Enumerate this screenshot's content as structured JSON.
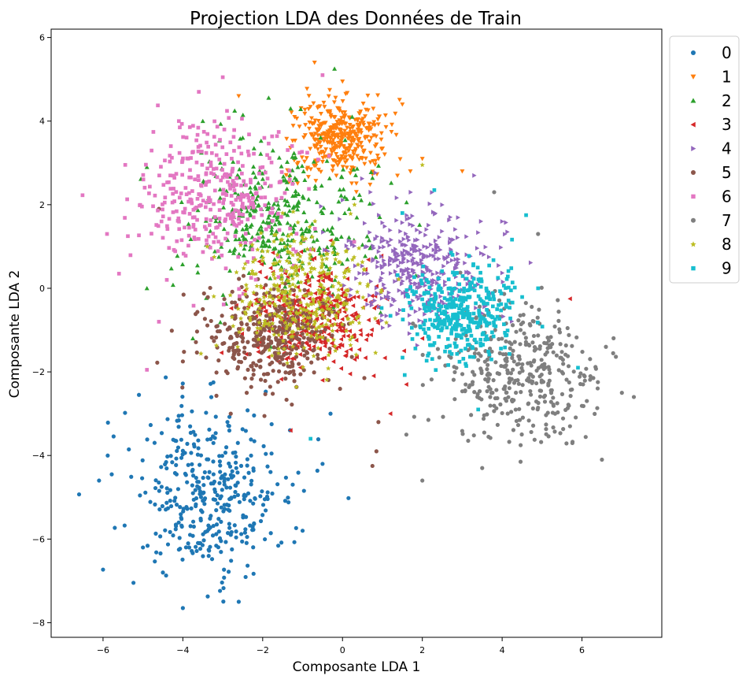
{
  "chart_data": {
    "type": "scatter",
    "title": "Projection LDA des Données de Train",
    "xlabel": "Composante LDA 1",
    "ylabel": "Composante LDA 2",
    "xlim": [
      -7.3,
      8.0
    ],
    "ylim": [
      -8.35,
      6.2
    ],
    "xticks": [
      -6,
      -4,
      -2,
      0,
      2,
      4,
      6
    ],
    "xtick_labels": [
      "−6",
      "−4",
      "−2",
      "0",
      "2",
      "4",
      "6"
    ],
    "yticks": [
      6,
      4,
      2,
      0,
      -2,
      -4,
      -6,
      -8
    ],
    "ytick_labels": [
      "6",
      "4",
      "2",
      "0",
      "−2",
      "−4",
      "−6",
      "−8"
    ],
    "grid": false,
    "legend_position": "outside-top-right",
    "series": [
      {
        "name": "0",
        "color": "#1f77b4",
        "marker": "circle",
        "center": [
          -3.4,
          -4.9
        ],
        "spread": [
          0.95,
          1.0
        ],
        "points": [
          [
            -6.6,
            -4.93
          ],
          [
            -6.0,
            -6.73
          ],
          [
            -6.1,
            -4.6
          ],
          [
            -5.1,
            -2.55
          ],
          [
            -2.6,
            -7.5
          ],
          [
            -4.0,
            -7.65
          ],
          [
            -0.5,
            -4.2
          ],
          [
            0.15,
            -5.02
          ],
          [
            -0.3,
            -3.0
          ],
          [
            -1.0,
            -5.8
          ],
          [
            -4.5,
            -6.8
          ],
          [
            -5.0,
            -6.2
          ]
        ]
      },
      {
        "name": "1",
        "color": "#ff7f0e",
        "marker": "triangle-down",
        "center": [
          -0.05,
          3.6
        ],
        "spread": [
          0.6,
          0.45
        ],
        "points": [
          [
            -0.7,
            5.4
          ],
          [
            0.0,
            4.95
          ],
          [
            -2.6,
            4.6
          ],
          [
            1.7,
            2.8
          ],
          [
            3.0,
            2.8
          ],
          [
            2.0,
            3.1
          ],
          [
            1.5,
            4.4
          ],
          [
            -1.2,
            4.1
          ]
        ]
      },
      {
        "name": "2",
        "color": "#2ca02c",
        "marker": "triangle-up",
        "center": [
          -1.6,
          1.6
        ],
        "spread": [
          1.1,
          0.95
        ],
        "points": [
          [
            -0.2,
            5.25
          ],
          [
            -4.9,
            2.9
          ],
          [
            -4.9,
            0.0
          ],
          [
            -3.75,
            -1.2
          ],
          [
            -1.8,
            -1.4
          ],
          [
            -1.3,
            4.3
          ],
          [
            -3.5,
            4.0
          ],
          [
            -2.5,
            3.6
          ]
        ]
      },
      {
        "name": "3",
        "color": "#d62728",
        "marker": "triangle-left",
        "center": [
          -0.7,
          -0.7
        ],
        "spread": [
          0.85,
          0.65
        ],
        "points": [
          [
            5.7,
            -0.25
          ],
          [
            2.0,
            -1.2
          ],
          [
            -1.3,
            -3.4
          ],
          [
            1.2,
            -3.0
          ],
          [
            -0.5,
            -2.2
          ],
          [
            1.6,
            -2.3
          ]
        ]
      },
      {
        "name": "4",
        "color": "#9467bd",
        "marker": "triangle-right",
        "center": [
          1.9,
          0.5
        ],
        "spread": [
          0.9,
          0.65
        ],
        "points": [
          [
            2.7,
            1.7
          ],
          [
            3.3,
            2.7
          ],
          [
            4.0,
            1.6
          ],
          [
            0.7,
            2.3
          ],
          [
            -0.3,
            -0.2
          ],
          [
            3.5,
            -0.6
          ]
        ]
      },
      {
        "name": "5",
        "color": "#8c564b",
        "marker": "circle",
        "center": [
          -1.7,
          -1.2
        ],
        "spread": [
          0.85,
          0.6
        ],
        "points": [
          [
            -4.6,
            1.9
          ],
          [
            -4.0,
            -1.75
          ],
          [
            0.85,
            -3.9
          ],
          [
            0.75,
            -4.25
          ],
          [
            -2.8,
            -3.0
          ],
          [
            0.9,
            -3.2
          ],
          [
            -2.4,
            -2.5
          ],
          [
            -3.5,
            -0.5
          ]
        ]
      },
      {
        "name": "6",
        "color": "#e377c2",
        "marker": "square",
        "center": [
          -3.1,
          2.2
        ],
        "spread": [
          1.0,
          0.85
        ],
        "points": [
          [
            -5.9,
            1.3
          ],
          [
            -4.9,
            -1.95
          ],
          [
            -3.0,
            5.05
          ],
          [
            -0.5,
            5.1
          ],
          [
            -4.1,
            4.0
          ],
          [
            -5.6,
            0.35
          ],
          [
            -3.6,
            4.7
          ],
          [
            -4.6,
            -0.8
          ]
        ]
      },
      {
        "name": "7",
        "color": "#7f7f7f",
        "marker": "circle",
        "center": [
          4.5,
          -2.05
        ],
        "spread": [
          1.0,
          0.75
        ],
        "points": [
          [
            7.3,
            -2.6
          ],
          [
            6.5,
            -4.1
          ],
          [
            2.0,
            -4.6
          ],
          [
            3.5,
            -4.3
          ],
          [
            3.8,
            2.3
          ],
          [
            4.9,
            1.3
          ],
          [
            7.0,
            -2.5
          ],
          [
            6.6,
            -1.4
          ],
          [
            1.6,
            -3.5
          ],
          [
            5.7,
            -3.3
          ]
        ]
      },
      {
        "name": "8",
        "color": "#bcbd22",
        "marker": "star",
        "center": [
          -1.0,
          -0.2
        ],
        "spread": [
          0.85,
          0.8
        ],
        "points": [
          [
            2.0,
            2.95
          ],
          [
            0.3,
            2.0
          ],
          [
            -1.5,
            1.8
          ]
        ]
      },
      {
        "name": "9",
        "color": "#17becf",
        "marker": "square",
        "center": [
          3.0,
          -0.55
        ],
        "spread": [
          0.75,
          0.55
        ],
        "points": [
          [
            4.6,
            1.75
          ],
          [
            2.3,
            2.35
          ],
          [
            5.9,
            -1.9
          ],
          [
            3.4,
            -2.9
          ],
          [
            -0.8,
            -3.6
          ],
          [
            1.5,
            1.8
          ],
          [
            4.9,
            0.0
          ]
        ]
      }
    ]
  }
}
